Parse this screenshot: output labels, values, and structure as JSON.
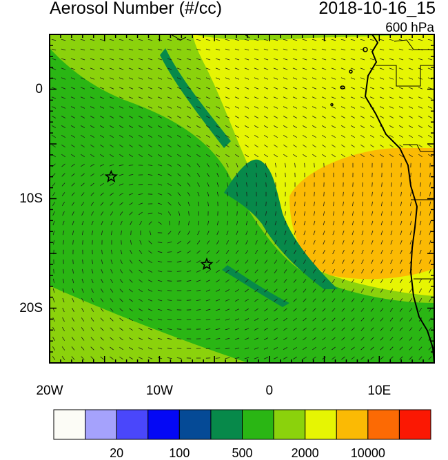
{
  "title": "Aerosol Number (#/cc)",
  "datetime": "2018-10-16_15",
  "level": "600 hPa",
  "map": {
    "lon_range": [
      -20,
      15
    ],
    "lat_range": [
      -25,
      5
    ],
    "x_ticks": [
      {
        "value": -20,
        "label": "20W"
      },
      {
        "value": -10,
        "label": "10W"
      },
      {
        "value": 0,
        "label": "0"
      },
      {
        "value": 10,
        "label": "10E"
      }
    ],
    "y_ticks": [
      {
        "value": 0,
        "label": "0"
      },
      {
        "value": -10,
        "label": "10S"
      },
      {
        "value": -20,
        "label": "20S"
      }
    ],
    "markers": [
      {
        "name": "star-marker-st-helena",
        "lon": -14.4,
        "lat": -8.0
      },
      {
        "name": "star-marker-ascension",
        "lon": -5.7,
        "lat": -16.0
      }
    ]
  },
  "colorbar": {
    "colors": [
      "#fcfcf6",
      "#a5a2fc",
      "#4a47fb",
      "#0408f5",
      "#054a96",
      "#07894a",
      "#2ab614",
      "#8bd20c",
      "#e6f503",
      "#fbba04",
      "#fc6a04",
      "#fb1803"
    ],
    "labels": [
      {
        "after_box": 2,
        "label": "20"
      },
      {
        "after_box": 4,
        "label": "100"
      },
      {
        "after_box": 6,
        "label": "500"
      },
      {
        "after_box": 8,
        "label": "2000"
      },
      {
        "after_box": 10,
        "label": "10000"
      }
    ]
  },
  "fill_colors": {
    "dark_green": "#07894a",
    "green": "#2ab614",
    "light_green": "#8bd20c",
    "yellow": "#e6f503",
    "orange": "#fbba04"
  }
}
